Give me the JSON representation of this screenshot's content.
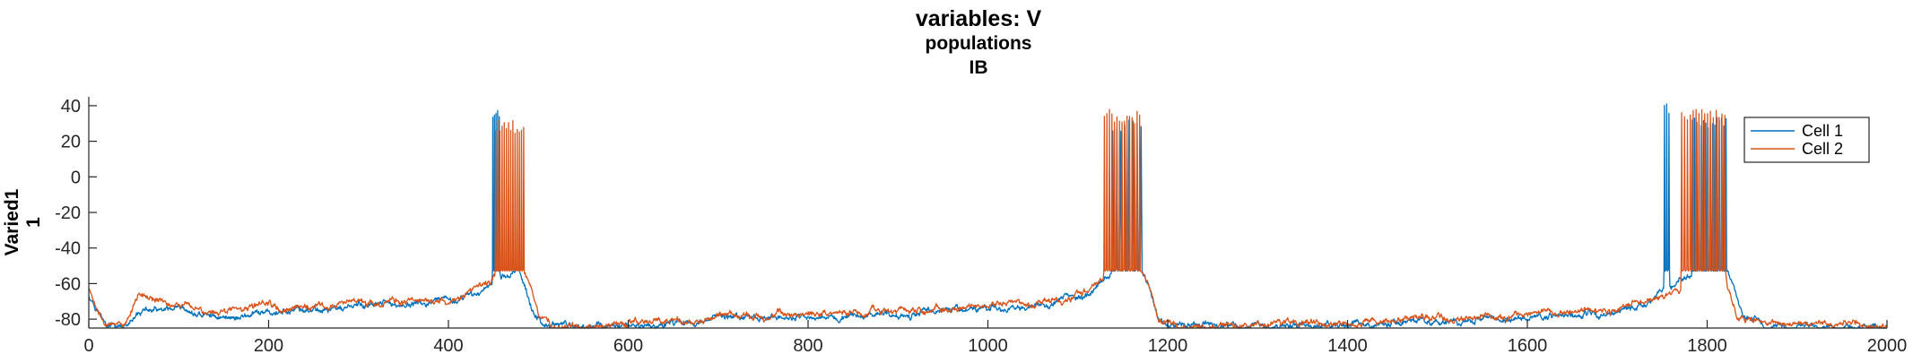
{
  "chart_data": {
    "type": "line",
    "title": "variables: V",
    "subtitle_lines": [
      "populations",
      "IB"
    ],
    "ylabel_lines": [
      "Varied1",
      "1"
    ],
    "xlabel": "",
    "xlim": [
      0,
      2000
    ],
    "ylim": [
      -85,
      45
    ],
    "xticks": [
      0,
      200,
      400,
      600,
      800,
      1000,
      1200,
      1400,
      1600,
      1800,
      2000
    ],
    "yticks": [
      -80,
      -60,
      -40,
      -20,
      0,
      20,
      40
    ],
    "grid": false,
    "legend_position": "top-right",
    "colors": {
      "cell1": "#0072BD",
      "cell2": "#D95319",
      "axis": "#262626"
    },
    "series": [
      {
        "name": "Cell 1",
        "color": "#0072BD",
        "baseline": [
          [
            0,
            -66
          ],
          [
            8,
            -72
          ],
          [
            20,
            -84
          ],
          [
            45,
            -85
          ],
          [
            60,
            -75
          ],
          [
            100,
            -77
          ],
          [
            150,
            -79
          ],
          [
            200,
            -77
          ],
          [
            250,
            -75
          ],
          [
            300,
            -73
          ],
          [
            350,
            -72
          ],
          [
            400,
            -71
          ],
          [
            430,
            -67
          ],
          [
            446,
            -60
          ],
          [
            450,
            -56
          ],
          [
            478,
            -54
          ],
          [
            484,
            -58
          ],
          [
            496,
            -80
          ],
          [
            520,
            -84
          ],
          [
            600,
            -84
          ],
          [
            700,
            -80
          ],
          [
            800,
            -79
          ],
          [
            900,
            -77
          ],
          [
            1000,
            -74
          ],
          [
            1080,
            -71
          ],
          [
            1110,
            -67
          ],
          [
            1124,
            -60
          ],
          [
            1130,
            -55
          ],
          [
            1170,
            -53
          ],
          [
            1178,
            -60
          ],
          [
            1190,
            -80
          ],
          [
            1210,
            -84
          ],
          [
            1300,
            -84
          ],
          [
            1400,
            -83
          ],
          [
            1500,
            -82
          ],
          [
            1600,
            -80
          ],
          [
            1680,
            -78
          ],
          [
            1730,
            -72
          ],
          [
            1750,
            -65
          ],
          [
            1765,
            -60
          ],
          [
            1780,
            -57
          ],
          [
            1820,
            -52
          ],
          [
            1830,
            -62
          ],
          [
            1840,
            -80
          ],
          [
            1870,
            -85
          ],
          [
            2000,
            -84
          ]
        ],
        "spikes": [
          [
            449,
            458,
            1.8,
            41,
            -52
          ],
          [
            1138,
            1172,
            4.5,
            32,
            -52
          ],
          [
            1752,
            1758,
            2.5,
            42,
            -52
          ],
          [
            1783,
            1822,
            2.5,
            34,
            -52
          ]
        ]
      },
      {
        "name": "Cell 2",
        "color": "#D95319",
        "baseline": [
          [
            0,
            -62
          ],
          [
            10,
            -75
          ],
          [
            18,
            -84
          ],
          [
            40,
            -84
          ],
          [
            55,
            -66
          ],
          [
            80,
            -70
          ],
          [
            150,
            -76
          ],
          [
            200,
            -73
          ],
          [
            250,
            -73
          ],
          [
            300,
            -71
          ],
          [
            350,
            -70
          ],
          [
            400,
            -70
          ],
          [
            430,
            -64
          ],
          [
            447,
            -60
          ],
          [
            452,
            -55
          ],
          [
            484,
            -53
          ],
          [
            490,
            -58
          ],
          [
            502,
            -80
          ],
          [
            520,
            -85
          ],
          [
            600,
            -83
          ],
          [
            700,
            -79
          ],
          [
            800,
            -77
          ],
          [
            900,
            -75
          ],
          [
            1000,
            -73
          ],
          [
            1080,
            -70
          ],
          [
            1110,
            -65
          ],
          [
            1124,
            -58
          ],
          [
            1130,
            -54
          ],
          [
            1170,
            -54
          ],
          [
            1178,
            -60
          ],
          [
            1190,
            -80
          ],
          [
            1210,
            -84
          ],
          [
            1300,
            -83
          ],
          [
            1400,
            -81
          ],
          [
            1500,
            -79
          ],
          [
            1600,
            -77
          ],
          [
            1680,
            -75
          ],
          [
            1730,
            -71
          ],
          [
            1760,
            -67
          ],
          [
            1775,
            -60
          ],
          [
            1785,
            -57
          ],
          [
            1820,
            -58
          ],
          [
            1825,
            -68
          ],
          [
            1835,
            -80
          ],
          [
            1880,
            -82
          ],
          [
            1950,
            -82
          ],
          [
            2000,
            -84
          ]
        ],
        "spikes": [
          [
            452,
            484,
            2.4,
            32,
            -52
          ],
          [
            1129,
            1170,
            2.8,
            38,
            -52
          ],
          [
            1771,
            1822,
            3.2,
            39,
            -52
          ]
        ]
      }
    ]
  }
}
